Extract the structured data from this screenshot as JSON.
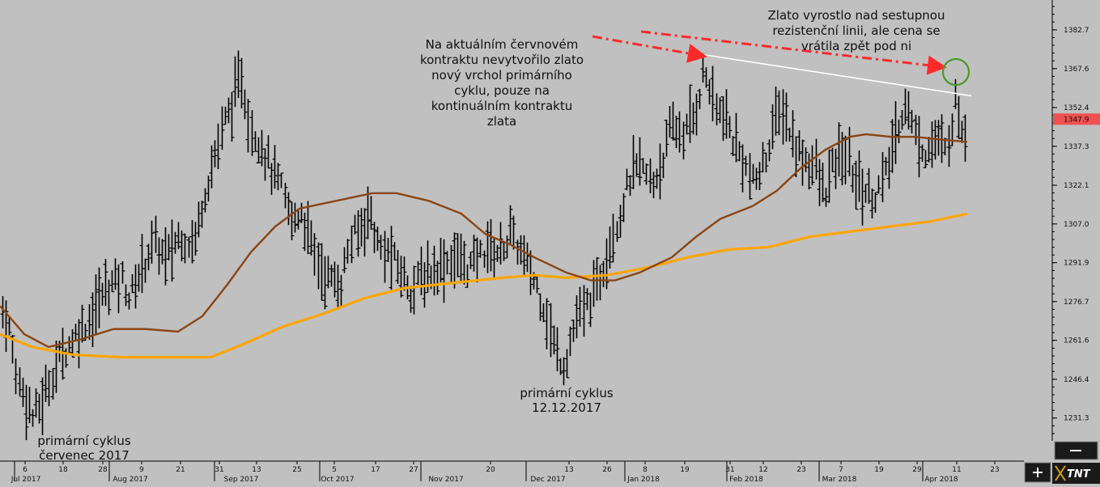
{
  "chart_data": {
    "type": "ohlc",
    "y_ticks": [
      1382.7,
      1367.6,
      1352.4,
      1337.3,
      1322.1,
      1307.0,
      1291.9,
      1276.7,
      1261.6,
      1246.4,
      1231.3
    ],
    "ylim": [
      1220,
      1395
    ],
    "last_price": "1347.9",
    "colors": {
      "background": "#c0c0c0",
      "bars": "#000000",
      "ma_short": "#8b4513",
      "ma_long": "#ffa500",
      "resistance": "#ffffff",
      "arrows": "#ff2a2a",
      "circle": "#4a9a2a",
      "last_price_bg": "#f05050"
    },
    "date_ticks": [
      "6",
      "18",
      "28",
      "9",
      "21",
      "31",
      "13",
      "25",
      "5",
      "17",
      "27",
      "20",
      "13",
      "26",
      "8",
      "19",
      "31",
      "12",
      "23",
      "7",
      "19",
      "29",
      "11",
      "23"
    ],
    "month_labels": [
      "Jul 2017",
      "Aug 2017",
      "Sep 2017",
      "Oct 2017",
      "Nov 2017",
      "Dec 2017",
      "Jan 2018",
      "Feb 2018",
      "Mar 2018",
      "Apr 2018"
    ],
    "annotations": [
      {
        "id": "june",
        "lines": [
          "Na aktuálním červnovém",
          "kontraktu nevytvořilo zlato",
          "nový vrchol primárního",
          "cyklu, pouze na",
          "kontinuálním kontraktu",
          "zlata"
        ]
      },
      {
        "id": "breakout",
        "lines": [
          "Zlato vyrostlo nad sestupnou",
          "rezistenční linii, ale cena se",
          "vrátila zpět pod ni"
        ]
      },
      {
        "id": "dec",
        "lines": [
          "primární cyklus",
          "12.12.2017"
        ]
      },
      {
        "id": "jul",
        "lines": [
          "primární cyklus",
          "červenec 2017"
        ]
      }
    ],
    "ma_short": [
      [
        0,
        1275
      ],
      [
        30,
        1264
      ],
      [
        60,
        1259
      ],
      [
        100,
        1262
      ],
      [
        140,
        1266
      ],
      [
        180,
        1266
      ],
      [
        220,
        1265
      ],
      [
        250,
        1271
      ],
      [
        280,
        1283
      ],
      [
        310,
        1296
      ],
      [
        340,
        1306
      ],
      [
        370,
        1313
      ],
      [
        400,
        1315
      ],
      [
        430,
        1317
      ],
      [
        460,
        1319
      ],
      [
        490,
        1319
      ],
      [
        530,
        1316
      ],
      [
        570,
        1311
      ],
      [
        600,
        1303
      ],
      [
        630,
        1299
      ],
      [
        660,
        1294
      ],
      [
        700,
        1288
      ],
      [
        730,
        1285
      ],
      [
        760,
        1285
      ],
      [
        790,
        1288
      ],
      [
        830,
        1294
      ],
      [
        860,
        1302
      ],
      [
        890,
        1309
      ],
      [
        930,
        1314
      ],
      [
        960,
        1320
      ],
      [
        990,
        1329
      ],
      [
        1020,
        1336
      ],
      [
        1050,
        1341
      ],
      [
        1070,
        1342
      ],
      [
        1100,
        1341
      ],
      [
        1130,
        1341
      ],
      [
        1160,
        1340
      ],
      [
        1195,
        1339
      ]
    ],
    "ma_long": [
      [
        0,
        1264
      ],
      [
        40,
        1259
      ],
      [
        90,
        1256
      ],
      [
        150,
        1255
      ],
      [
        200,
        1255
      ],
      [
        260,
        1255
      ],
      [
        300,
        1260
      ],
      [
        350,
        1267
      ],
      [
        400,
        1272
      ],
      [
        450,
        1278
      ],
      [
        500,
        1282
      ],
      [
        560,
        1284
      ],
      [
        620,
        1286
      ],
      [
        660,
        1287
      ],
      [
        700,
        1286
      ],
      [
        750,
        1287
      ],
      [
        800,
        1290
      ],
      [
        850,
        1294
      ],
      [
        900,
        1297
      ],
      [
        950,
        1298
      ],
      [
        1000,
        1302
      ],
      [
        1050,
        1304
      ],
      [
        1100,
        1306
      ],
      [
        1150,
        1308
      ],
      [
        1195,
        1311
      ]
    ],
    "resistance_line": [
      [
        870,
        1373
      ],
      [
        1200,
        1357
      ]
    ],
    "price_path": [
      [
        0,
        1275
      ],
      [
        10,
        1268
      ],
      [
        20,
        1248
      ],
      [
        30,
        1240
      ],
      [
        40,
        1232
      ],
      [
        50,
        1236
      ],
      [
        60,
        1245
      ],
      [
        75,
        1256
      ],
      [
        90,
        1262
      ],
      [
        110,
        1270
      ],
      [
        130,
        1282
      ],
      [
        150,
        1286
      ],
      [
        160,
        1278
      ],
      [
        175,
        1290
      ],
      [
        190,
        1300
      ],
      [
        205,
        1293
      ],
      [
        220,
        1302
      ],
      [
        240,
        1300
      ],
      [
        250,
        1316
      ],
      [
        262,
        1330
      ],
      [
        275,
        1345
      ],
      [
        288,
        1355
      ],
      [
        298,
        1365
      ],
      [
        308,
        1345
      ],
      [
        320,
        1340
      ],
      [
        335,
        1328
      ],
      [
        348,
        1320
      ],
      [
        360,
        1308
      ],
      [
        372,
        1312
      ],
      [
        385,
        1298
      ],
      [
        398,
        1288
      ],
      [
        410,
        1285
      ],
      [
        420,
        1283
      ],
      [
        432,
        1300
      ],
      [
        445,
        1305
      ],
      [
        456,
        1313
      ],
      [
        468,
        1297
      ],
      [
        482,
        1295
      ],
      [
        495,
        1288
      ],
      [
        508,
        1282
      ],
      [
        520,
        1286
      ],
      [
        540,
        1290
      ],
      [
        560,
        1294
      ],
      [
        580,
        1290
      ],
      [
        600,
        1298
      ],
      [
        615,
        1296
      ],
      [
        632,
        1303
      ],
      [
        645,
        1294
      ],
      [
        660,
        1285
      ],
      [
        672,
        1275
      ],
      [
        685,
        1258
      ],
      [
        697,
        1252
      ],
      [
        710,
        1268
      ],
      [
        725,
        1275
      ],
      [
        740,
        1285
      ],
      [
        752,
        1300
      ],
      [
        765,
        1310
      ],
      [
        778,
        1325
      ],
      [
        790,
        1330
      ],
      [
        805,
        1322
      ],
      [
        818,
        1332
      ],
      [
        830,
        1345
      ],
      [
        845,
        1342
      ],
      [
        858,
        1350
      ],
      [
        870,
        1368
      ],
      [
        882,
        1352
      ],
      [
        893,
        1350
      ],
      [
        905,
        1340
      ],
      [
        918,
        1332
      ],
      [
        930,
        1322
      ],
      [
        943,
        1330
      ],
      [
        955,
        1345
      ],
      [
        967,
        1352
      ],
      [
        980,
        1338
      ],
      [
        992,
        1333
      ],
      [
        1005,
        1330
      ],
      [
        1018,
        1318
      ],
      [
        1030,
        1330
      ],
      [
        1043,
        1335
      ],
      [
        1055,
        1325
      ],
      [
        1068,
        1320
      ],
      [
        1080,
        1318
      ],
      [
        1093,
        1325
      ],
      [
        1105,
        1340
      ],
      [
        1118,
        1355
      ],
      [
        1130,
        1342
      ],
      [
        1143,
        1335
      ],
      [
        1155,
        1340
      ],
      [
        1168,
        1335
      ],
      [
        1180,
        1355
      ],
      [
        1188,
        1345
      ],
      [
        1196,
        1340
      ]
    ]
  }
}
